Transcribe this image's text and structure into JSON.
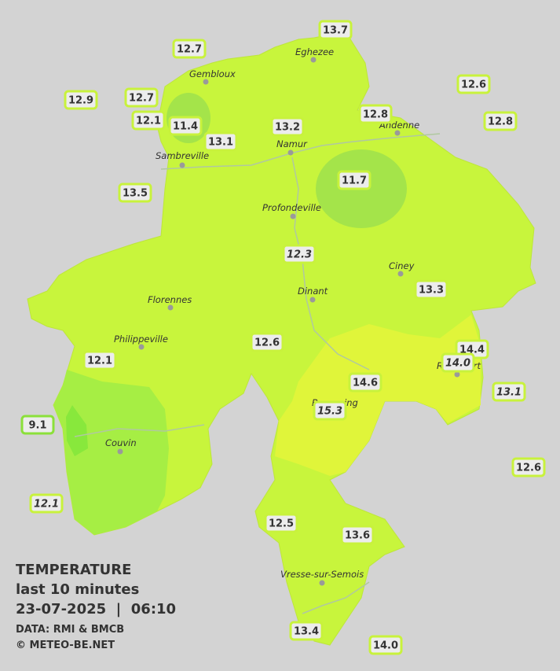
{
  "title": "TEMPERATURE",
  "subtitle": "last 10 minutes",
  "datetime": "23-07-2025  |  06:10",
  "source": "DATA: RMI & BMCB",
  "credit": "© METEO-BE.NET",
  "cities": [
    "Eghezee",
    "Gembloux",
    "Andenne",
    "Namur",
    "Sambreville",
    "Profondeville",
    "Ciney",
    "Dinant",
    "Florennes",
    "Philippeville",
    "Rochefort",
    "Beauraing",
    "Couvin",
    "Vresse-sur-Semois"
  ],
  "stations": [
    {
      "label": "12.7"
    },
    {
      "label": "13.7"
    },
    {
      "label": "12.9"
    },
    {
      "label": "12.7"
    },
    {
      "label": "12.1"
    },
    {
      "label": "11.4"
    },
    {
      "label": "13.1"
    },
    {
      "label": "13.2"
    },
    {
      "label": "12.8"
    },
    {
      "label": "12.6"
    },
    {
      "label": "12.8"
    },
    {
      "label": "11.7"
    },
    {
      "label": "13.5"
    },
    {
      "label": "12.3",
      "italic": true
    },
    {
      "label": "13.3"
    },
    {
      "label": "12.6"
    },
    {
      "label": "14.4"
    },
    {
      "label": "14.0",
      "italic": true
    },
    {
      "label": "12.1"
    },
    {
      "label": "14.6"
    },
    {
      "label": "13.1",
      "italic": true
    },
    {
      "label": "15.3",
      "italic": true
    },
    {
      "label": "9.1"
    },
    {
      "label": "12.6"
    },
    {
      "label": "12.1",
      "italic": true
    },
    {
      "label": "12.5"
    },
    {
      "label": "13.6"
    },
    {
      "label": "13.4"
    },
    {
      "label": "14.0"
    }
  ]
}
